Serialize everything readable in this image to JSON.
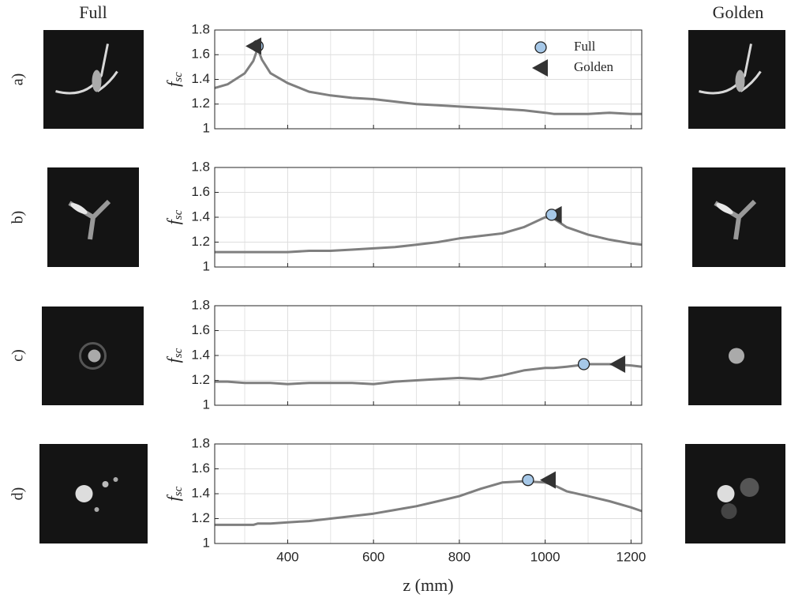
{
  "column_titles": {
    "left": "Full",
    "right": "Golden"
  },
  "chart_data": [
    {
      "type": "line",
      "panel_label": "a)",
      "y_label": "f",
      "y_label_sub": "sc",
      "xlim": [
        230,
        1225
      ],
      "xticks": [
        400,
        600,
        800,
        1000,
        1200
      ],
      "x_minor_grid": [
        300,
        500,
        700,
        900,
        1100
      ],
      "xtick_labels": false,
      "ylim": [
        1,
        1.8
      ],
      "yticks": [
        1,
        1.2,
        1.4,
        1.6,
        1.8
      ],
      "grid": true,
      "legend": "top-right",
      "x": [
        230,
        260,
        300,
        320,
        330,
        340,
        360,
        400,
        450,
        500,
        550,
        600,
        650,
        700,
        750,
        800,
        850,
        900,
        950,
        1000,
        1020,
        1050,
        1100,
        1150,
        1200,
        1225
      ],
      "series": [
        {
          "color": "#7f7f7f",
          "values": [
            1.33,
            1.36,
            1.45,
            1.55,
            1.65,
            1.56,
            1.45,
            1.37,
            1.3,
            1.27,
            1.25,
            1.24,
            1.22,
            1.2,
            1.19,
            1.18,
            1.17,
            1.16,
            1.15,
            1.13,
            1.12,
            1.12,
            1.12,
            1.13,
            1.12,
            1.12
          ]
        }
      ],
      "markers": [
        {
          "name": "Full",
          "shape": "circle",
          "color": "#a6c8e8",
          "x": 330,
          "y": 1.67
        },
        {
          "name": "Golden",
          "shape": "triangle",
          "color": "#333333",
          "x": 322,
          "y": 1.67
        }
      ]
    },
    {
      "type": "line",
      "panel_label": "b)",
      "y_label": "f",
      "y_label_sub": "sc",
      "xlim": [
        230,
        1225
      ],
      "xticks": [
        400,
        600,
        800,
        1000,
        1200
      ],
      "x_minor_grid": [
        300,
        500,
        700,
        900,
        1100
      ],
      "xtick_labels": false,
      "ylim": [
        1,
        1.8
      ],
      "yticks": [
        1,
        1.2,
        1.4,
        1.6,
        1.8
      ],
      "grid": true,
      "x": [
        230,
        260,
        300,
        320,
        330,
        340,
        360,
        400,
        450,
        500,
        550,
        600,
        650,
        700,
        750,
        800,
        850,
        900,
        950,
        1000,
        1020,
        1050,
        1100,
        1150,
        1200,
        1225
      ],
      "series": [
        {
          "color": "#7f7f7f",
          "values": [
            1.12,
            1.12,
            1.12,
            1.12,
            1.12,
            1.12,
            1.12,
            1.12,
            1.13,
            1.13,
            1.14,
            1.15,
            1.16,
            1.18,
            1.2,
            1.23,
            1.25,
            1.27,
            1.32,
            1.4,
            1.39,
            1.32,
            1.26,
            1.22,
            1.19,
            1.18
          ]
        }
      ],
      "markers": [
        {
          "shape": "triangle",
          "color": "#333333",
          "x": 1022,
          "y": 1.42
        },
        {
          "shape": "circle",
          "color": "#a6c8e8",
          "x": 1015,
          "y": 1.42
        }
      ]
    },
    {
      "type": "line",
      "panel_label": "c)",
      "y_label": "f",
      "y_label_sub": "sc",
      "xlim": [
        230,
        1225
      ],
      "xticks": [
        400,
        600,
        800,
        1000,
        1200
      ],
      "x_minor_grid": [
        300,
        500,
        700,
        900,
        1100
      ],
      "xtick_labels": false,
      "ylim": [
        1,
        1.8
      ],
      "yticks": [
        1,
        1.2,
        1.4,
        1.6,
        1.8
      ],
      "grid": true,
      "x": [
        230,
        260,
        300,
        320,
        330,
        340,
        360,
        400,
        450,
        500,
        550,
        600,
        650,
        700,
        750,
        800,
        850,
        900,
        950,
        1000,
        1020,
        1050,
        1100,
        1150,
        1200,
        1225
      ],
      "series": [
        {
          "color": "#7f7f7f",
          "values": [
            1.19,
            1.19,
            1.18,
            1.18,
            1.18,
            1.18,
            1.18,
            1.17,
            1.18,
            1.18,
            1.18,
            1.17,
            1.19,
            1.2,
            1.21,
            1.22,
            1.21,
            1.24,
            1.28,
            1.3,
            1.3,
            1.31,
            1.33,
            1.33,
            1.32,
            1.31
          ]
        }
      ],
      "markers": [
        {
          "shape": "circle",
          "color": "#a6c8e8",
          "x": 1090,
          "y": 1.33
        },
        {
          "shape": "triangle",
          "color": "#333333",
          "x": 1170,
          "y": 1.33
        }
      ]
    },
    {
      "type": "line",
      "panel_label": "d)",
      "y_label": "f",
      "y_label_sub": "sc",
      "x_label": "z (mm)",
      "xlim": [
        230,
        1225
      ],
      "xticks": [
        400,
        600,
        800,
        1000,
        1200
      ],
      "x_minor_grid": [
        300,
        500,
        700,
        900,
        1100
      ],
      "xtick_labels": true,
      "ylim": [
        1,
        1.8
      ],
      "yticks": [
        1,
        1.2,
        1.4,
        1.6,
        1.8
      ],
      "grid": true,
      "x": [
        230,
        260,
        300,
        320,
        330,
        340,
        360,
        400,
        450,
        500,
        550,
        600,
        650,
        700,
        750,
        800,
        850,
        900,
        950,
        1000,
        1020,
        1050,
        1100,
        1150,
        1200,
        1225
      ],
      "series": [
        {
          "color": "#7f7f7f",
          "values": [
            1.15,
            1.15,
            1.15,
            1.15,
            1.16,
            1.16,
            1.16,
            1.17,
            1.18,
            1.2,
            1.22,
            1.24,
            1.27,
            1.3,
            1.34,
            1.38,
            1.44,
            1.49,
            1.5,
            1.49,
            1.47,
            1.42,
            1.38,
            1.34,
            1.29,
            1.26
          ]
        }
      ],
      "markers": [
        {
          "shape": "circle",
          "color": "#a6c8e8",
          "x": 960,
          "y": 1.51
        },
        {
          "shape": "triangle",
          "color": "#333333",
          "x": 1008,
          "y": 1.51
        }
      ]
    }
  ]
}
